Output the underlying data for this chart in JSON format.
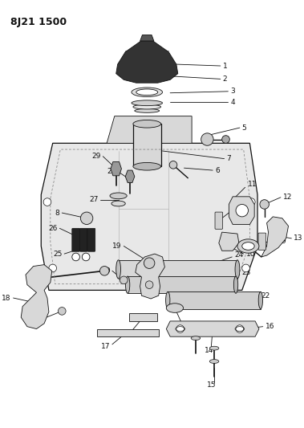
{
  "title": "8J21 1500",
  "bg_color": "#ffffff",
  "fig_width": 3.79,
  "fig_height": 5.33,
  "dpi": 100
}
